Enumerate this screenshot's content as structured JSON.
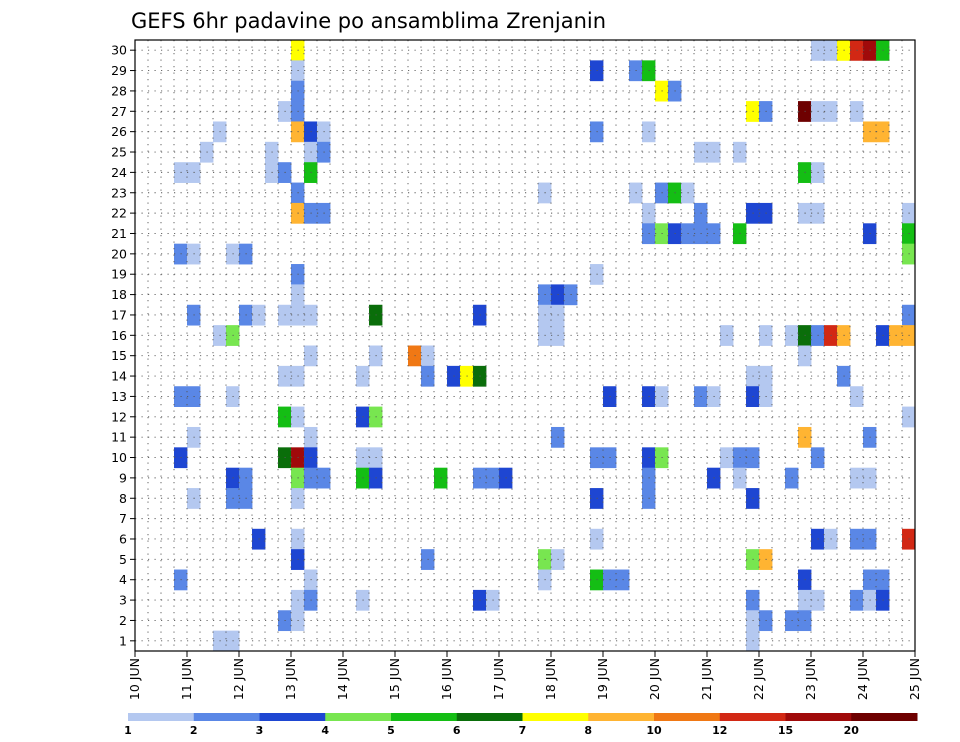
{
  "chart_data": {
    "type": "heatmap",
    "title": "GEFS 6hr padavine po ansamblima Zrenjanin",
    "xlabel": "",
    "ylabel": "",
    "x_tick_labels": [
      "10 JUN",
      "11 JUN",
      "12 JUN",
      "13 JUN",
      "14 JUN",
      "15 JUN",
      "16 JUN",
      "17 JUN",
      "18 JUN",
      "19 JUN",
      "20 JUN",
      "21 JUN",
      "22 JUN",
      "23 JUN",
      "24 JUN",
      "25 JUN"
    ],
    "y_tick_labels": [
      "1",
      "2",
      "3",
      "4",
      "5",
      "6",
      "7",
      "8",
      "9",
      "10",
      "11",
      "12",
      "13",
      "14",
      "15",
      "16",
      "17",
      "18",
      "19",
      "20",
      "21",
      "22",
      "23",
      "24",
      "25",
      "26",
      "27",
      "28",
      "29",
      "30"
    ],
    "x_unit": "day",
    "x_range": [
      0,
      15
    ],
    "y_range": [
      0.5,
      30.5
    ],
    "grid": true,
    "colorbar": {
      "labels": [
        "1",
        "2",
        "3",
        "4",
        "5",
        "6",
        "7",
        "8",
        "10",
        "12",
        "15",
        "20"
      ],
      "colors": [
        "#b4c8f0",
        "#5a87e6",
        "#1e46d2",
        "#78e650",
        "#14be14",
        "#0a6e0a",
        "#ffff00",
        "#ffb432",
        "#f07814",
        "#d22814",
        "#a00a0a",
        "#6e0000"
      ]
    },
    "cells": [
      [
        3.0,
        30,
        "#ffff00"
      ],
      [
        13.0,
        30,
        "#b4c8f0"
      ],
      [
        13.25,
        30,
        "#b4c8f0"
      ],
      [
        13.5,
        30,
        "#ffff00"
      ],
      [
        13.75,
        30,
        "#d22814"
      ],
      [
        14.0,
        30,
        "#a00a0a"
      ],
      [
        14.25,
        30,
        "#14be14"
      ],
      [
        3.0,
        29,
        "#b4c8f0"
      ],
      [
        8.75,
        29,
        "#1e46d2"
      ],
      [
        9.5,
        29,
        "#5a87e6"
      ],
      [
        9.75,
        29,
        "#14be14"
      ],
      [
        3.0,
        28,
        "#5a87e6"
      ],
      [
        10.0,
        28,
        "#ffff00"
      ],
      [
        10.25,
        28,
        "#5a87e6"
      ],
      [
        2.75,
        27,
        "#b4c8f0"
      ],
      [
        3.0,
        27,
        "#5a87e6"
      ],
      [
        11.75,
        27,
        "#ffff00"
      ],
      [
        12.0,
        27,
        "#5a87e6"
      ],
      [
        12.75,
        27,
        "#6e0000"
      ],
      [
        13.0,
        27,
        "#b4c8f0"
      ],
      [
        13.25,
        27,
        "#b4c8f0"
      ],
      [
        13.75,
        27,
        "#b4c8f0"
      ],
      [
        1.5,
        26,
        "#b4c8f0"
      ],
      [
        3.0,
        26,
        "#ffb432"
      ],
      [
        3.25,
        26,
        "#1e46d2"
      ],
      [
        3.5,
        26,
        "#b4c8f0"
      ],
      [
        8.75,
        26,
        "#5a87e6"
      ],
      [
        9.75,
        26,
        "#b4c8f0"
      ],
      [
        14.0,
        26,
        "#ffb432"
      ],
      [
        14.25,
        26,
        "#ffb432"
      ],
      [
        1.25,
        25,
        "#b4c8f0"
      ],
      [
        2.5,
        25,
        "#b4c8f0"
      ],
      [
        3.25,
        25,
        "#b4c8f0"
      ],
      [
        3.5,
        25,
        "#5a87e6"
      ],
      [
        10.75,
        25,
        "#b4c8f0"
      ],
      [
        11.0,
        25,
        "#b4c8f0"
      ],
      [
        11.5,
        25,
        "#b4c8f0"
      ],
      [
        0.75,
        24,
        "#b4c8f0"
      ],
      [
        1.0,
        24,
        "#b4c8f0"
      ],
      [
        2.5,
        24,
        "#b4c8f0"
      ],
      [
        2.75,
        24,
        "#5a87e6"
      ],
      [
        3.25,
        24,
        "#14be14"
      ],
      [
        12.75,
        24,
        "#14be14"
      ],
      [
        13.0,
        24,
        "#b4c8f0"
      ],
      [
        3.0,
        23,
        "#5a87e6"
      ],
      [
        7.75,
        23,
        "#b4c8f0"
      ],
      [
        9.5,
        23,
        "#b4c8f0"
      ],
      [
        10.0,
        23,
        "#5a87e6"
      ],
      [
        10.25,
        23,
        "#14be14"
      ],
      [
        10.5,
        23,
        "#b4c8f0"
      ],
      [
        3.0,
        22,
        "#ffb432"
      ],
      [
        3.25,
        22,
        "#5a87e6"
      ],
      [
        3.5,
        22,
        "#5a87e6"
      ],
      [
        9.75,
        22,
        "#b4c8f0"
      ],
      [
        10.75,
        22,
        "#5a87e6"
      ],
      [
        11.75,
        22,
        "#1e46d2"
      ],
      [
        12.0,
        22,
        "#1e46d2"
      ],
      [
        12.75,
        22,
        "#b4c8f0"
      ],
      [
        13.0,
        22,
        "#b4c8f0"
      ],
      [
        14.75,
        22,
        "#b4c8f0"
      ],
      [
        9.75,
        21,
        "#5a87e6"
      ],
      [
        10.0,
        21,
        "#78e650"
      ],
      [
        10.25,
        21,
        "#1e46d2"
      ],
      [
        10.5,
        21,
        "#5a87e6"
      ],
      [
        10.75,
        21,
        "#5a87e6"
      ],
      [
        11.0,
        21,
        "#5a87e6"
      ],
      [
        11.5,
        21,
        "#14be14"
      ],
      [
        14.0,
        21,
        "#1e46d2"
      ],
      [
        14.75,
        21,
        "#14be14"
      ],
      [
        0.75,
        20,
        "#5a87e6"
      ],
      [
        1.0,
        20,
        "#b4c8f0"
      ],
      [
        1.75,
        20,
        "#b4c8f0"
      ],
      [
        2.0,
        20,
        "#5a87e6"
      ],
      [
        14.75,
        20,
        "#78e650"
      ],
      [
        3.0,
        19,
        "#5a87e6"
      ],
      [
        8.75,
        19,
        "#b4c8f0"
      ],
      [
        3.0,
        18,
        "#b4c8f0"
      ],
      [
        7.75,
        18,
        "#5a87e6"
      ],
      [
        8.0,
        18,
        "#1e46d2"
      ],
      [
        8.25,
        18,
        "#5a87e6"
      ],
      [
        1.0,
        17,
        "#5a87e6"
      ],
      [
        2.0,
        17,
        "#5a87e6"
      ],
      [
        2.25,
        17,
        "#b4c8f0"
      ],
      [
        2.75,
        17,
        "#b4c8f0"
      ],
      [
        3.0,
        17,
        "#b4c8f0"
      ],
      [
        3.25,
        17,
        "#b4c8f0"
      ],
      [
        4.5,
        17,
        "#0a6e0a"
      ],
      [
        6.5,
        17,
        "#1e46d2"
      ],
      [
        7.75,
        17,
        "#b4c8f0"
      ],
      [
        8.0,
        17,
        "#b4c8f0"
      ],
      [
        14.75,
        17,
        "#5a87e6"
      ],
      [
        1.5,
        16,
        "#b4c8f0"
      ],
      [
        1.75,
        16,
        "#78e650"
      ],
      [
        7.75,
        16,
        "#b4c8f0"
      ],
      [
        8.0,
        16,
        "#b4c8f0"
      ],
      [
        11.25,
        16,
        "#b4c8f0"
      ],
      [
        12.0,
        16,
        "#b4c8f0"
      ],
      [
        12.5,
        16,
        "#b4c8f0"
      ],
      [
        12.75,
        16,
        "#0a6e0a"
      ],
      [
        13.0,
        16,
        "#5a87e6"
      ],
      [
        13.25,
        16,
        "#d22814"
      ],
      [
        13.5,
        16,
        "#ffb432"
      ],
      [
        14.25,
        16,
        "#1e46d2"
      ],
      [
        14.5,
        16,
        "#ffb432"
      ],
      [
        14.75,
        16,
        "#ffb432"
      ],
      [
        3.25,
        15,
        "#b4c8f0"
      ],
      [
        4.5,
        15,
        "#b4c8f0"
      ],
      [
        5.25,
        15,
        "#f07814"
      ],
      [
        5.5,
        15,
        "#b4c8f0"
      ],
      [
        12.75,
        15,
        "#b4c8f0"
      ],
      [
        2.75,
        14,
        "#b4c8f0"
      ],
      [
        3.0,
        14,
        "#b4c8f0"
      ],
      [
        4.25,
        14,
        "#b4c8f0"
      ],
      [
        5.5,
        14,
        "#5a87e6"
      ],
      [
        6.0,
        14,
        "#1e46d2"
      ],
      [
        6.25,
        14,
        "#ffff00"
      ],
      [
        6.5,
        14,
        "#0a6e0a"
      ],
      [
        11.75,
        14,
        "#b4c8f0"
      ],
      [
        12.0,
        14,
        "#b4c8f0"
      ],
      [
        13.5,
        14,
        "#5a87e6"
      ],
      [
        0.75,
        13,
        "#5a87e6"
      ],
      [
        1.0,
        13,
        "#5a87e6"
      ],
      [
        1.75,
        13,
        "#b4c8f0"
      ],
      [
        9.0,
        13,
        "#1e46d2"
      ],
      [
        9.75,
        13,
        "#1e46d2"
      ],
      [
        10.0,
        13,
        "#b4c8f0"
      ],
      [
        10.75,
        13,
        "#5a87e6"
      ],
      [
        11.0,
        13,
        "#b4c8f0"
      ],
      [
        11.75,
        13,
        "#1e46d2"
      ],
      [
        12.0,
        13,
        "#b4c8f0"
      ],
      [
        13.75,
        13,
        "#b4c8f0"
      ],
      [
        2.75,
        12,
        "#14be14"
      ],
      [
        3.0,
        12,
        "#b4c8f0"
      ],
      [
        4.25,
        12,
        "#1e46d2"
      ],
      [
        4.5,
        12,
        "#78e650"
      ],
      [
        14.75,
        12,
        "#b4c8f0"
      ],
      [
        1.0,
        11,
        "#b4c8f0"
      ],
      [
        3.25,
        11,
        "#b4c8f0"
      ],
      [
        8.0,
        11,
        "#5a87e6"
      ],
      [
        12.75,
        11,
        "#ffb432"
      ],
      [
        14.0,
        11,
        "#5a87e6"
      ],
      [
        0.75,
        10,
        "#1e46d2"
      ],
      [
        2.75,
        10,
        "#0a6e0a"
      ],
      [
        3.0,
        10,
        "#a00a0a"
      ],
      [
        3.25,
        10,
        "#1e46d2"
      ],
      [
        4.25,
        10,
        "#b4c8f0"
      ],
      [
        4.5,
        10,
        "#b4c8f0"
      ],
      [
        8.75,
        10,
        "#5a87e6"
      ],
      [
        9.0,
        10,
        "#5a87e6"
      ],
      [
        9.75,
        10,
        "#1e46d2"
      ],
      [
        10.0,
        10,
        "#78e650"
      ],
      [
        11.25,
        10,
        "#b4c8f0"
      ],
      [
        11.5,
        10,
        "#5a87e6"
      ],
      [
        11.75,
        10,
        "#5a87e6"
      ],
      [
        13.0,
        10,
        "#5a87e6"
      ],
      [
        1.75,
        9,
        "#1e46d2"
      ],
      [
        2.0,
        9,
        "#5a87e6"
      ],
      [
        3.0,
        9,
        "#78e650"
      ],
      [
        3.25,
        9,
        "#5a87e6"
      ],
      [
        3.5,
        9,
        "#5a87e6"
      ],
      [
        4.25,
        9,
        "#14be14"
      ],
      [
        4.5,
        9,
        "#1e46d2"
      ],
      [
        5.75,
        9,
        "#14be14"
      ],
      [
        6.5,
        9,
        "#5a87e6"
      ],
      [
        6.75,
        9,
        "#5a87e6"
      ],
      [
        7.0,
        9,
        "#1e46d2"
      ],
      [
        9.75,
        9,
        "#5a87e6"
      ],
      [
        11.0,
        9,
        "#1e46d2"
      ],
      [
        11.5,
        9,
        "#b4c8f0"
      ],
      [
        12.5,
        9,
        "#5a87e6"
      ],
      [
        13.75,
        9,
        "#b4c8f0"
      ],
      [
        14.0,
        9,
        "#b4c8f0"
      ],
      [
        1.0,
        8,
        "#b4c8f0"
      ],
      [
        1.75,
        8,
        "#5a87e6"
      ],
      [
        2.0,
        8,
        "#5a87e6"
      ],
      [
        3.0,
        8,
        "#b4c8f0"
      ],
      [
        8.75,
        8,
        "#1e46d2"
      ],
      [
        9.75,
        8,
        "#5a87e6"
      ],
      [
        11.75,
        8,
        "#1e46d2"
      ],
      [
        2.25,
        6,
        "#1e46d2"
      ],
      [
        3.0,
        6,
        "#b4c8f0"
      ],
      [
        8.75,
        6,
        "#b4c8f0"
      ],
      [
        13.0,
        6,
        "#1e46d2"
      ],
      [
        13.25,
        6,
        "#b4c8f0"
      ],
      [
        13.75,
        6,
        "#5a87e6"
      ],
      [
        14.0,
        6,
        "#5a87e6"
      ],
      [
        14.75,
        6,
        "#d22814"
      ],
      [
        3.0,
        5,
        "#1e46d2"
      ],
      [
        5.5,
        5,
        "#5a87e6"
      ],
      [
        7.75,
        5,
        "#78e650"
      ],
      [
        8.0,
        5,
        "#b4c8f0"
      ],
      [
        11.75,
        5,
        "#78e650"
      ],
      [
        12.0,
        5,
        "#ffb432"
      ],
      [
        0.75,
        4,
        "#5a87e6"
      ],
      [
        3.25,
        4,
        "#b4c8f0"
      ],
      [
        7.75,
        4,
        "#b4c8f0"
      ],
      [
        8.75,
        4,
        "#14be14"
      ],
      [
        9.0,
        4,
        "#5a87e6"
      ],
      [
        9.25,
        4,
        "#5a87e6"
      ],
      [
        12.75,
        4,
        "#1e46d2"
      ],
      [
        14.0,
        4,
        "#5a87e6"
      ],
      [
        14.25,
        4,
        "#5a87e6"
      ],
      [
        3.0,
        3,
        "#b4c8f0"
      ],
      [
        3.25,
        3,
        "#5a87e6"
      ],
      [
        4.25,
        3,
        "#b4c8f0"
      ],
      [
        6.5,
        3,
        "#1e46d2"
      ],
      [
        6.75,
        3,
        "#b4c8f0"
      ],
      [
        11.75,
        3,
        "#5a87e6"
      ],
      [
        12.75,
        3,
        "#b4c8f0"
      ],
      [
        13.0,
        3,
        "#b4c8f0"
      ],
      [
        13.75,
        3,
        "#5a87e6"
      ],
      [
        14.0,
        3,
        "#b4c8f0"
      ],
      [
        14.25,
        3,
        "#1e46d2"
      ],
      [
        2.75,
        2,
        "#5a87e6"
      ],
      [
        3.0,
        2,
        "#b4c8f0"
      ],
      [
        11.75,
        2,
        "#b4c8f0"
      ],
      [
        12.0,
        2,
        "#5a87e6"
      ],
      [
        12.5,
        2,
        "#5a87e6"
      ],
      [
        12.75,
        2,
        "#5a87e6"
      ],
      [
        1.5,
        1,
        "#b4c8f0"
      ],
      [
        1.75,
        1,
        "#b4c8f0"
      ],
      [
        11.75,
        1,
        "#b4c8f0"
      ]
    ]
  }
}
